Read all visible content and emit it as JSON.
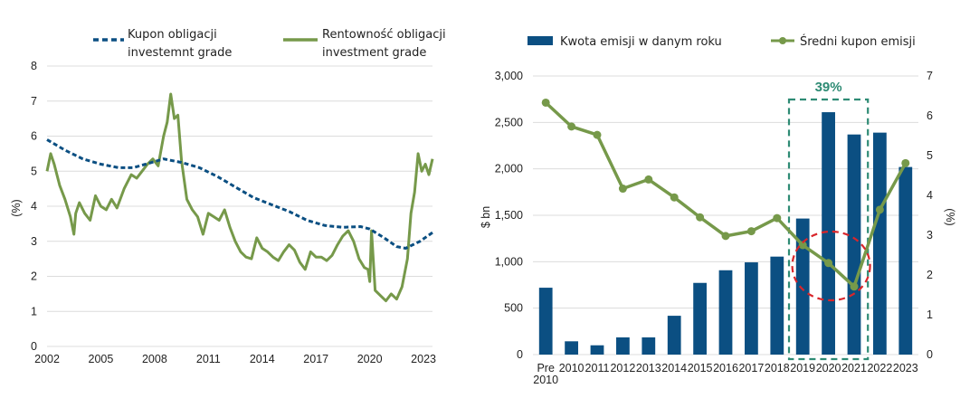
{
  "colors": {
    "navy": "#0b4f82",
    "green": "#76994a",
    "grid": "#dcdcdc",
    "teal_box": "#2e8b74",
    "red_circle": "#d9262b"
  },
  "chart_data": [
    {
      "type": "line",
      "title": "",
      "xlabel": "",
      "ylabel": "(%)",
      "ylim": [
        0,
        8
      ],
      "xlim": [
        2002,
        2023.5
      ],
      "yticks": [
        "0",
        "1",
        "2",
        "3",
        "4",
        "5",
        "6",
        "7",
        "8"
      ],
      "xticks": [
        "2002",
        "2005",
        "2008",
        "2011",
        "2014",
        "2017",
        "2020",
        "2023"
      ],
      "grid": true,
      "legend_position": "top",
      "series": [
        {
          "name": "Kupon obligacji investemnt grade",
          "line_style": "dashed",
          "color": "#0b4f82",
          "x": [
            2002.0,
            2003.0,
            2004.0,
            2005.0,
            2006.0,
            2006.8,
            2007.5,
            2008.5,
            2009.5,
            2010.5,
            2011.5,
            2012.5,
            2013.5,
            2014.5,
            2015.5,
            2016.5,
            2017.5,
            2018.5,
            2019.5,
            2020.0,
            2020.8,
            2021.5,
            2022.0,
            2022.8,
            2023.5
          ],
          "y": [
            5.9,
            5.6,
            5.35,
            5.2,
            5.1,
            5.1,
            5.2,
            5.35,
            5.25,
            5.1,
            4.85,
            4.55,
            4.25,
            4.05,
            3.85,
            3.6,
            3.45,
            3.4,
            3.42,
            3.35,
            3.1,
            2.85,
            2.8,
            3.0,
            3.25
          ]
        },
        {
          "name": "Rentowność obligacji investment grade",
          "line_style": "solid",
          "color": "#76994a",
          "x": [
            2002.0,
            2002.2,
            2002.4,
            2002.7,
            2003.0,
            2003.3,
            2003.5,
            2003.6,
            2003.8,
            2004.1,
            2004.4,
            2004.7,
            2005.0,
            2005.3,
            2005.6,
            2005.9,
            2006.3,
            2006.7,
            2007.0,
            2007.3,
            2007.6,
            2007.9,
            2008.2,
            2008.5,
            2008.7,
            2008.9,
            2009.1,
            2009.3,
            2009.5,
            2009.8,
            2010.1,
            2010.4,
            2010.7,
            2011.0,
            2011.3,
            2011.6,
            2011.9,
            2012.2,
            2012.5,
            2012.8,
            2013.1,
            2013.4,
            2013.7,
            2014.0,
            2014.3,
            2014.6,
            2014.9,
            2015.2,
            2015.5,
            2015.8,
            2016.1,
            2016.4,
            2016.7,
            2017.0,
            2017.3,
            2017.6,
            2017.9,
            2018.2,
            2018.5,
            2018.8,
            2019.1,
            2019.4,
            2019.7,
            2019.9,
            2020.0,
            2020.1,
            2020.3,
            2020.6,
            2020.9,
            2021.2,
            2021.5,
            2021.8,
            2022.1,
            2022.3,
            2022.5,
            2022.7,
            2022.9,
            2023.1,
            2023.3,
            2023.5
          ],
          "y": [
            5.0,
            5.5,
            5.2,
            4.6,
            4.2,
            3.7,
            3.2,
            3.8,
            4.1,
            3.8,
            3.6,
            4.3,
            4.0,
            3.9,
            4.2,
            3.95,
            4.5,
            4.9,
            4.8,
            5.0,
            5.2,
            5.35,
            5.15,
            6.0,
            6.4,
            7.2,
            6.5,
            6.6,
            5.3,
            4.2,
            3.9,
            3.7,
            3.2,
            3.8,
            3.7,
            3.6,
            3.9,
            3.4,
            3.0,
            2.7,
            2.55,
            2.5,
            3.1,
            2.8,
            2.7,
            2.55,
            2.45,
            2.7,
            2.9,
            2.75,
            2.4,
            2.2,
            2.7,
            2.55,
            2.55,
            2.45,
            2.6,
            2.9,
            3.15,
            3.3,
            3.0,
            2.5,
            2.25,
            2.2,
            1.85,
            3.3,
            1.6,
            1.45,
            1.3,
            1.5,
            1.35,
            1.7,
            2.5,
            3.8,
            4.4,
            5.5,
            5.0,
            5.2,
            4.9,
            5.35
          ]
        }
      ]
    },
    {
      "type": "bar",
      "title": "",
      "xlabel": "",
      "ylabel": "$ bn",
      "y2label": "(%)",
      "ylim": [
        0,
        3000
      ],
      "y2lim": [
        0,
        7
      ],
      "yticks": [
        "0",
        "500",
        "1,000",
        "1,500",
        "2,000",
        "2,500",
        "3,000"
      ],
      "y2ticks": [
        "0",
        "1",
        "2",
        "3",
        "4",
        "5",
        "6",
        "7"
      ],
      "grid": true,
      "legend_position": "top",
      "categories": [
        "Pre 2010",
        "2010",
        "2011",
        "2012",
        "2013",
        "2014",
        "2015",
        "2016",
        "2017",
        "2018",
        "2019",
        "2020",
        "2021",
        "2022",
        "2023"
      ],
      "series": [
        {
          "name": "Kwota emisji w danym roku",
          "type": "bar",
          "axis": "left",
          "color": "#0b4f82",
          "values": [
            720,
            143,
            100,
            185,
            185,
            418,
            772,
            908,
            993,
            1055,
            1465,
            2610,
            2370,
            2390,
            2020
          ]
        },
        {
          "name": "Średni kupon emisji",
          "type": "line",
          "axis": "right",
          "color": "#76994a",
          "values": [
            6.33,
            5.73,
            5.52,
            4.17,
            4.4,
            3.95,
            3.45,
            2.98,
            3.1,
            3.43,
            2.75,
            2.3,
            1.71,
            3.64,
            4.81
          ]
        }
      ],
      "annotations": [
        {
          "type": "dashed-box",
          "label": "39%",
          "from": "2019",
          "to": "2021"
        },
        {
          "type": "dashed-ellipse",
          "around": [
            "2019",
            "2020",
            "2021"
          ],
          "label": ""
        }
      ]
    }
  ]
}
